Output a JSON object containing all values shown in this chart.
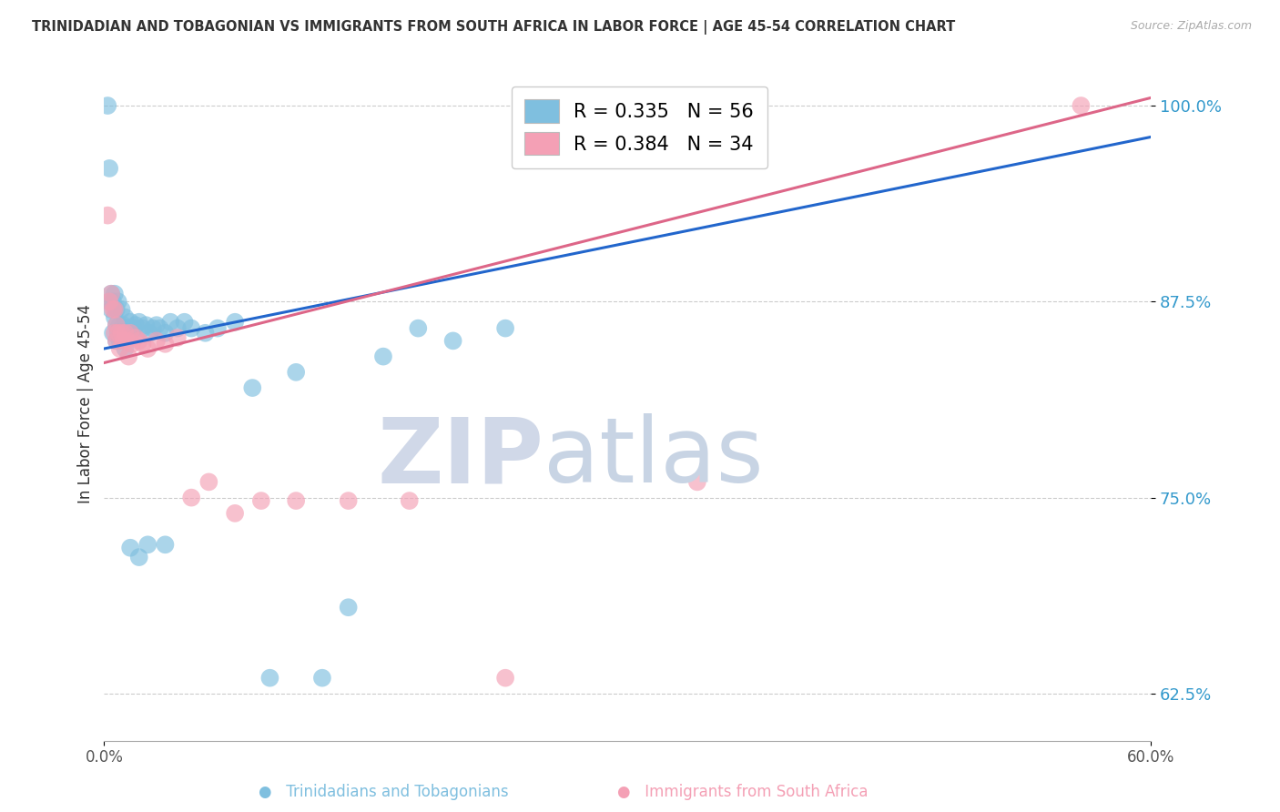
{
  "title": "TRINIDADIAN AND TOBAGONIAN VS IMMIGRANTS FROM SOUTH AFRICA IN LABOR FORCE | AGE 45-54 CORRELATION CHART",
  "source": "Source: ZipAtlas.com",
  "ylabel": "In Labor Force | Age 45-54",
  "xlim": [
    0.0,
    0.6
  ],
  "ylim": [
    0.595,
    1.025
  ],
  "yticks": [
    0.625,
    0.75,
    0.875,
    1.0
  ],
  "ytick_labels": [
    "62.5%",
    "75.0%",
    "87.5%",
    "100.0%"
  ],
  "blue_R": 0.335,
  "blue_N": 56,
  "pink_R": 0.384,
  "pink_N": 34,
  "blue_color": "#7fbfdf",
  "pink_color": "#f4a0b5",
  "blue_line_color": "#2266cc",
  "pink_line_color": "#dd6688",
  "legend_label_blue": "Trinidadians and Tobagonians",
  "legend_label_pink": "Immigrants from South Africa",
  "background_color": "#ffffff",
  "grid_color": "#cccccc",
  "blue_x": [
    0.002,
    0.003,
    0.003,
    0.004,
    0.004,
    0.005,
    0.005,
    0.006,
    0.006,
    0.007,
    0.007,
    0.007,
    0.008,
    0.008,
    0.009,
    0.009,
    0.01,
    0.01,
    0.011,
    0.011,
    0.012,
    0.012,
    0.013,
    0.014,
    0.015,
    0.016,
    0.017,
    0.018,
    0.02,
    0.022,
    0.024,
    0.026,
    0.028,
    0.03,
    0.032,
    0.035,
    0.038,
    0.042,
    0.046,
    0.05,
    0.058,
    0.065,
    0.075,
    0.085,
    0.095,
    0.11,
    0.125,
    0.14,
    0.16,
    0.18,
    0.2,
    0.23,
    0.015,
    0.02,
    0.025,
    0.035
  ],
  "blue_y": [
    1.0,
    0.96,
    0.875,
    0.88,
    0.87,
    0.875,
    0.855,
    0.865,
    0.88,
    0.87,
    0.86,
    0.85,
    0.855,
    0.875,
    0.86,
    0.85,
    0.855,
    0.87,
    0.86,
    0.85,
    0.865,
    0.845,
    0.855,
    0.858,
    0.862,
    0.855,
    0.858,
    0.86,
    0.862,
    0.858,
    0.86,
    0.855,
    0.858,
    0.86,
    0.858,
    0.855,
    0.862,
    0.858,
    0.862,
    0.858,
    0.855,
    0.858,
    0.862,
    0.82,
    0.635,
    0.83,
    0.635,
    0.68,
    0.84,
    0.858,
    0.85,
    0.858,
    0.718,
    0.712,
    0.72,
    0.72
  ],
  "pink_x": [
    0.002,
    0.003,
    0.004,
    0.005,
    0.006,
    0.006,
    0.007,
    0.007,
    0.008,
    0.009,
    0.01,
    0.011,
    0.012,
    0.013,
    0.014,
    0.015,
    0.016,
    0.018,
    0.02,
    0.022,
    0.025,
    0.03,
    0.035,
    0.042,
    0.05,
    0.06,
    0.075,
    0.09,
    0.11,
    0.14,
    0.175,
    0.34,
    0.56,
    0.23
  ],
  "pink_y": [
    0.93,
    0.875,
    0.88,
    0.87,
    0.855,
    0.87,
    0.85,
    0.86,
    0.855,
    0.845,
    0.855,
    0.85,
    0.855,
    0.85,
    0.84,
    0.855,
    0.848,
    0.852,
    0.85,
    0.848,
    0.845,
    0.85,
    0.848,
    0.852,
    0.75,
    0.76,
    0.74,
    0.748,
    0.748,
    0.748,
    0.748,
    0.76,
    1.0,
    0.635
  ],
  "blue_trend_x": [
    0.0,
    0.6
  ],
  "blue_trend_y": [
    0.845,
    0.98
  ],
  "pink_trend_x": [
    0.0,
    0.6
  ],
  "pink_trend_y": [
    0.836,
    1.005
  ]
}
